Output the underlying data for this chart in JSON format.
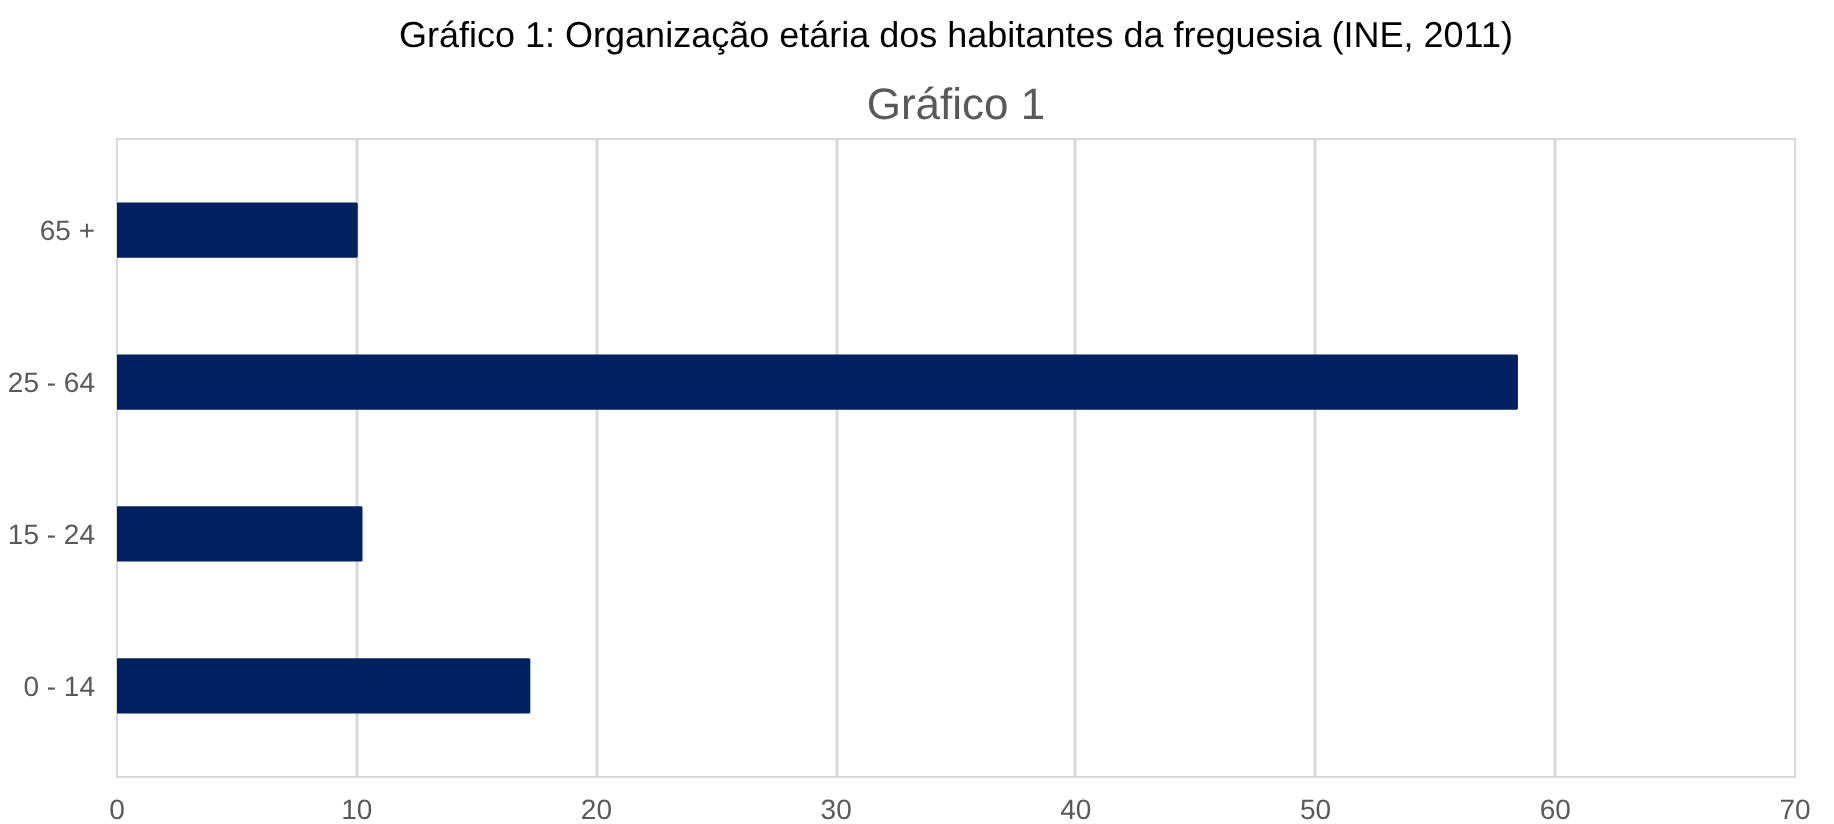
{
  "chart_data": {
    "type": "bar",
    "orientation": "horizontal",
    "title": "Gráfico 1",
    "annotations": [
      "Gráfico 1: Organização etária dos habitantes da freguesia (INE, 2011)"
    ],
    "categories": [
      "65 +",
      "25 - 64",
      "15 - 24",
      "0 - 14"
    ],
    "values": [
      10.0,
      58.4,
      10.2,
      17.2
    ],
    "color": "#002060",
    "xlim": [
      0,
      70
    ],
    "xticks": [
      0,
      10,
      20,
      30,
      40,
      50,
      60,
      70
    ],
    "grid": "x"
  }
}
